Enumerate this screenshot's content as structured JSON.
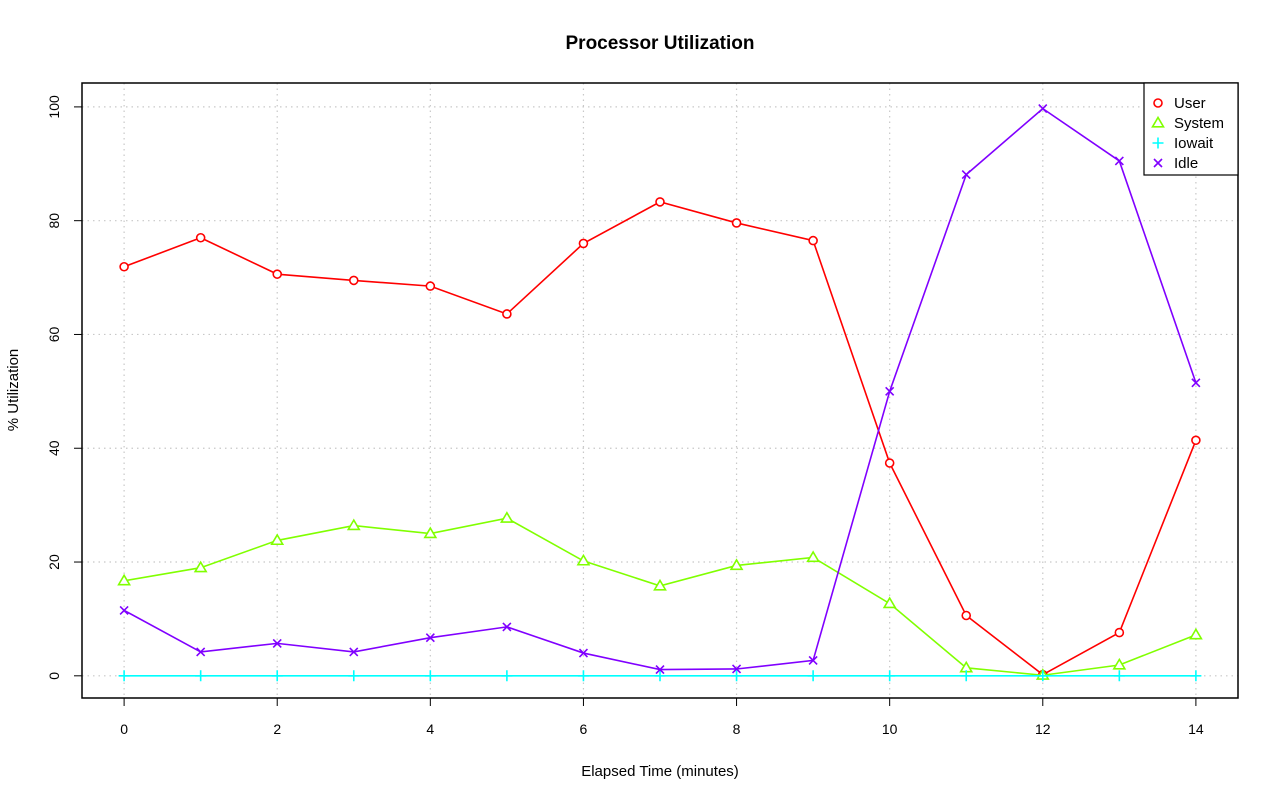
{
  "chart_data": {
    "type": "line",
    "title": "Processor Utilization",
    "xlabel": "Elapsed Time (minutes)",
    "ylabel": "% Utilization",
    "x": [
      0,
      1,
      2,
      3,
      4,
      5,
      6,
      7,
      8,
      9,
      10,
      11,
      12,
      13,
      14
    ],
    "xlim": [
      -0.55,
      14.55
    ],
    "ylim": [
      -3.9,
      104.2
    ],
    "x_ticks": [
      0,
      2,
      4,
      6,
      8,
      10,
      12,
      14
    ],
    "y_ticks": [
      0,
      20,
      40,
      60,
      80,
      100
    ],
    "grid": true,
    "legend_position": "top-right",
    "series": [
      {
        "name": "User",
        "color": "#ff0000",
        "marker": "circle",
        "values": [
          71.9,
          77.0,
          70.6,
          69.5,
          68.5,
          63.6,
          76.0,
          83.3,
          79.6,
          76.5,
          37.4,
          10.6,
          0.2,
          7.6,
          41.4
        ]
      },
      {
        "name": "System",
        "color": "#80ff00",
        "marker": "triangle",
        "values": [
          16.7,
          19.0,
          23.8,
          26.4,
          25.0,
          27.7,
          20.2,
          15.8,
          19.4,
          20.8,
          12.7,
          1.4,
          0.1,
          1.9,
          7.2
        ]
      },
      {
        "name": "Iowait",
        "color": "#00ffff",
        "marker": "plus",
        "values": [
          0,
          0,
          0,
          0,
          0,
          0,
          0,
          0,
          0,
          0,
          0,
          0,
          0,
          0,
          0
        ]
      },
      {
        "name": "Idle",
        "color": "#8000ff",
        "marker": "cross",
        "values": [
          11.5,
          4.2,
          5.7,
          4.2,
          6.7,
          8.6,
          4.0,
          1.1,
          1.2,
          2.7,
          50.0,
          88.1,
          99.7,
          90.5,
          51.5
        ]
      }
    ]
  }
}
